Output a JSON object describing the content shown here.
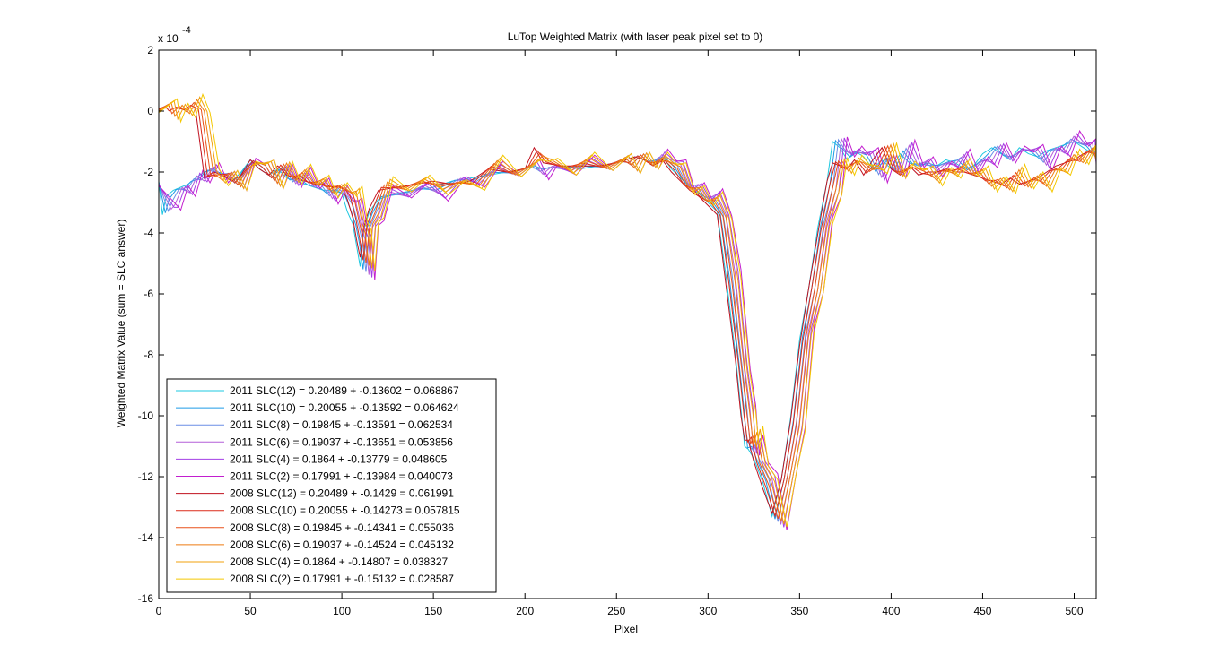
{
  "chart_data": {
    "type": "line",
    "title": "LuTop Weighted Matrix  (with laser peak pixel set to 0)",
    "xlabel": "Pixel",
    "ylabel": "Weighted Matrix Value (sum = SLC answer)",
    "y_multiplier_base": "x 10",
    "y_multiplier_exp": "-4",
    "xlim": [
      0,
      512
    ],
    "ylim": [
      -16,
      2
    ],
    "x_ticks": [
      0,
      50,
      100,
      150,
      200,
      250,
      300,
      350,
      400,
      450,
      500
    ],
    "y_ticks": [
      2,
      0,
      -2,
      -4,
      -6,
      -8,
      -10,
      -12,
      -14,
      -16
    ],
    "grid": false,
    "legend_position": "lower-left",
    "series": [
      {
        "name": "2011 SLC(12) = 0.20489 + -0.13602 = 0.068867",
        "color": "#1ec8e0",
        "lag": 0,
        "jit": 0.0,
        "group": 2011,
        "x": [
          0,
          2,
          4,
          8,
          12,
          16,
          20,
          25,
          30,
          35,
          40,
          45,
          50,
          55,
          60,
          65,
          70,
          75,
          80,
          85,
          90,
          95,
          100,
          103,
          106,
          108,
          110,
          112,
          115,
          120,
          130,
          140,
          150,
          160,
          170,
          180,
          190,
          200,
          205,
          210,
          220,
          230,
          240,
          250,
          255,
          260,
          265,
          270,
          275,
          280,
          285,
          290,
          295,
          300,
          305,
          310,
          315,
          318,
          320,
          322,
          325,
          330,
          335,
          340,
          345,
          350,
          355,
          360,
          365,
          368,
          372,
          376,
          380,
          385,
          390,
          395,
          400,
          405,
          410,
          415,
          420,
          425,
          430,
          435,
          440,
          445,
          450,
          455,
          460,
          465,
          470,
          475,
          480,
          485,
          490,
          495,
          500,
          505,
          510,
          512
        ],
        "y": [
          -2.3,
          -3.4,
          -2.8,
          -2.6,
          -2.5,
          -2.4,
          -2.2,
          -2.0,
          -1.9,
          -2.1,
          -2.3,
          -2.0,
          -1.6,
          -1.9,
          -2.1,
          -1.9,
          -2.2,
          -2.3,
          -2.4,
          -2.5,
          -2.6,
          -2.6,
          -2.7,
          -3.3,
          -3.7,
          -4.4,
          -5.1,
          -3.9,
          -3.3,
          -2.9,
          -2.7,
          -2.6,
          -2.5,
          -2.3,
          -2.2,
          -2.1,
          -2.0,
          -1.9,
          -1.8,
          -1.9,
          -1.8,
          -1.9,
          -1.8,
          -1.7,
          -1.6,
          -1.5,
          -1.6,
          -1.7,
          -1.5,
          -1.9,
          -2.2,
          -2.5,
          -2.7,
          -3.0,
          -3.3,
          -5.5,
          -8.0,
          -9.8,
          -11.0,
          -11.1,
          -11.4,
          -12.2,
          -13.3,
          -12.1,
          -10.1,
          -7.5,
          -5.8,
          -3.8,
          -2.3,
          -1.0,
          -1.2,
          -1.6,
          -1.3,
          -1.5,
          -1.9,
          -1.6,
          -1.9,
          -1.4,
          -1.7,
          -1.8,
          -1.7,
          -1.8,
          -1.6,
          -1.7,
          -1.9,
          -1.8,
          -1.4,
          -1.2,
          -1.4,
          -1.6,
          -1.2,
          -1.4,
          -1.5,
          -1.3,
          -1.2,
          -1.1,
          -1.0,
          -1.2,
          -1.4,
          -1.3
        ]
      },
      {
        "name": "2011 SLC(10) = 0.20055 + -0.13592 = 0.064624",
        "color": "#1e9be6",
        "lag": 1,
        "jit": 0.03,
        "group": 2011,
        "from": 0
      },
      {
        "name": "2011 SLC(8) = 0.19845 + -0.13591 = 0.062534",
        "color": "#6a8ee6",
        "lag": 2,
        "jit": 0.06,
        "group": 2011,
        "from": 0
      },
      {
        "name": "2011 SLC(6) = 0.19037 + -0.13651 = 0.053856",
        "color": "#b45ed8",
        "lag": 3,
        "jit": 0.09,
        "group": 2011,
        "from": 0
      },
      {
        "name": "2011 SLC(4) = 0.1864 + -0.13779 = 0.048605",
        "color": "#a33ee6",
        "lag": 4,
        "jit": 0.12,
        "group": 2011,
        "from": 0
      },
      {
        "name": "2011 SLC(2) = 0.17991 + -0.13984 = 0.040073",
        "color": "#c21ecf",
        "lag": 5,
        "jit": 0.15,
        "group": 2011,
        "from": 0
      },
      {
        "name": "2008 SLC(12) = 0.20489 + -0.1429 = 0.061991",
        "color": "#c0101e",
        "lag": 0,
        "jit": 0.0,
        "group": 2008,
        "x": [
          0,
          2,
          4,
          8,
          12,
          16,
          20,
          25,
          30,
          35,
          40,
          45,
          50,
          55,
          60,
          65,
          70,
          75,
          80,
          85,
          90,
          95,
          100,
          103,
          106,
          108,
          110,
          112,
          115,
          120,
          130,
          140,
          150,
          160,
          170,
          180,
          190,
          200,
          205,
          210,
          220,
          230,
          240,
          250,
          255,
          260,
          265,
          270,
          275,
          280,
          285,
          290,
          295,
          300,
          305,
          310,
          315,
          318,
          320,
          322,
          325,
          330,
          335,
          340,
          345,
          350,
          355,
          360,
          365,
          368,
          372,
          376,
          380,
          385,
          390,
          395,
          400,
          405,
          410,
          415,
          420,
          425,
          430,
          435,
          440,
          445,
          450,
          455,
          460,
          465,
          470,
          475,
          480,
          485,
          490,
          495,
          500,
          505,
          510,
          512
        ],
        "y": [
          0.1,
          0.1,
          0.1,
          0.1,
          0.1,
          0.1,
          0.1,
          -2.2,
          -2.0,
          -2.1,
          -2.3,
          -2.1,
          -1.6,
          -1.9,
          -2.1,
          -1.8,
          -2.1,
          -2.2,
          -2.3,
          -2.4,
          -2.4,
          -2.5,
          -2.5,
          -2.9,
          -3.5,
          -4.2,
          -4.8,
          -3.8,
          -3.2,
          -2.6,
          -2.5,
          -2.4,
          -2.3,
          -2.4,
          -2.3,
          -1.9,
          -2.0,
          -1.9,
          -1.2,
          -1.7,
          -1.8,
          -1.8,
          -1.8,
          -1.7,
          -1.6,
          -1.5,
          -1.6,
          -1.8,
          -1.6,
          -2.0,
          -2.3,
          -2.6,
          -2.8,
          -3.1,
          -3.4,
          -5.8,
          -8.2,
          -10.0,
          -10.8,
          -10.8,
          -11.5,
          -12.4,
          -13.2,
          -12.1,
          -10.2,
          -7.7,
          -5.8,
          -4.0,
          -2.3,
          -1.7,
          -1.8,
          -1.9,
          -1.6,
          -2.1,
          -1.6,
          -1.2,
          -1.9,
          -2.1,
          -1.8,
          -2.1,
          -2.0,
          -2.0,
          -1.9,
          -2.0,
          -2.0,
          -2.1,
          -2.2,
          -2.3,
          -2.4,
          -2.2,
          -2.4,
          -2.3,
          -2.2,
          -2.0,
          -1.8,
          -1.7,
          -1.6,
          -1.4,
          -1.3,
          -1.1
        ]
      },
      {
        "name": "2008 SLC(10) = 0.20055 + -0.14273 = 0.057815",
        "color": "#dc2a18",
        "lag": 1,
        "jit": 0.03,
        "group": 2008,
        "from": 6
      },
      {
        "name": "2008 SLC(8) = 0.19845 + -0.14341 = 0.055036",
        "color": "#e8501a",
        "lag": 2,
        "jit": 0.06,
        "group": 2008,
        "from": 6
      },
      {
        "name": "2008 SLC(6) = 0.19037 + -0.14524 = 0.045132",
        "color": "#ee7a12",
        "lag": 3,
        "jit": 0.09,
        "group": 2008,
        "from": 6
      },
      {
        "name": "2008 SLC(4) = 0.1864 + -0.14807 = 0.038327",
        "color": "#f2a00c",
        "lag": 4,
        "jit": 0.12,
        "group": 2008,
        "from": 6
      },
      {
        "name": "2008 SLC(2) = 0.17991 + -0.15132 = 0.028587",
        "color": "#f4c800",
        "lag": 5,
        "jit": 0.15,
        "group": 2008,
        "from": 6
      }
    ]
  }
}
